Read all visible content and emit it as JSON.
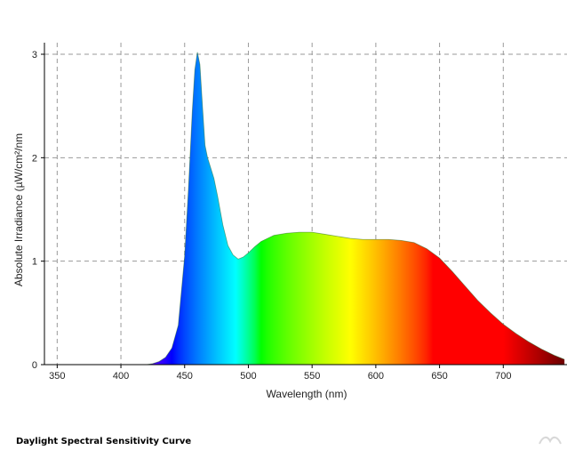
{
  "caption": "Daylight Spectral Sensitivity Curve",
  "chart_data": {
    "type": "area",
    "title": "",
    "xlabel": "Wavelength (nm)",
    "ylabel": "Absolute Irradiance (µW/cm²/nm",
    "xlim": [
      340,
      750
    ],
    "ylim": [
      0,
      3.2
    ],
    "x_ticks": [
      350,
      400,
      450,
      500,
      550,
      600,
      650,
      700
    ],
    "y_ticks": [
      0,
      1,
      2,
      3
    ],
    "grid": true,
    "grid_style": "dashed",
    "fill": "visible spectrum colors by wavelength",
    "x": [
      420,
      425,
      430,
      435,
      440,
      445,
      450,
      453,
      456,
      458,
      460,
      462,
      464,
      466,
      468,
      470,
      473,
      476,
      480,
      484,
      488,
      492,
      496,
      500,
      505,
      510,
      520,
      530,
      540,
      550,
      560,
      570,
      580,
      590,
      600,
      610,
      620,
      630,
      640,
      650,
      660,
      670,
      680,
      690,
      700,
      710,
      720,
      730,
      740,
      748
    ],
    "y": [
      0.0,
      0.01,
      0.03,
      0.07,
      0.16,
      0.38,
      1.05,
      1.7,
      2.45,
      2.85,
      3.02,
      2.9,
      2.5,
      2.12,
      2.0,
      1.92,
      1.8,
      1.62,
      1.35,
      1.15,
      1.06,
      1.02,
      1.04,
      1.08,
      1.14,
      1.19,
      1.25,
      1.27,
      1.28,
      1.28,
      1.26,
      1.24,
      1.22,
      1.21,
      1.21,
      1.21,
      1.2,
      1.18,
      1.12,
      1.03,
      0.9,
      0.76,
      0.62,
      0.5,
      0.39,
      0.3,
      0.22,
      0.15,
      0.09,
      0.05
    ]
  }
}
